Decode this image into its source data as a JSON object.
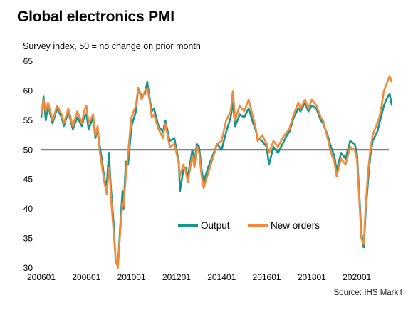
{
  "chart_data": {
    "type": "line",
    "title": "Global electronics PMI",
    "subtitle": "Survey index, 50 = no change on prior month",
    "source": "Source: IHS Markit",
    "ylim": [
      30,
      65
    ],
    "yticks": [
      30,
      35,
      40,
      45,
      50,
      55,
      60,
      65
    ],
    "xticks": [
      "200601",
      "200801",
      "201001",
      "201201",
      "201401",
      "201601",
      "201801",
      "202001"
    ],
    "x_start": "2006-01",
    "x_end": "2021-06",
    "reference_line": 50,
    "legend_position": "center-bottom",
    "series": [
      {
        "name": "Output",
        "color": "#17958a",
        "values": [
          [
            2006.0,
            55.5
          ],
          [
            2006.1,
            59.0
          ],
          [
            2006.2,
            55.0
          ],
          [
            2006.3,
            57.5
          ],
          [
            2006.5,
            54.5
          ],
          [
            2006.7,
            57.0
          ],
          [
            2006.9,
            55.5
          ],
          [
            2007.0,
            54.0
          ],
          [
            2007.2,
            56.5
          ],
          [
            2007.4,
            53.5
          ],
          [
            2007.6,
            55.5
          ],
          [
            2007.8,
            54.0
          ],
          [
            2007.9,
            55.5
          ],
          [
            2008.0,
            56.0
          ],
          [
            2008.1,
            53.5
          ],
          [
            2008.3,
            55.5
          ],
          [
            2008.4,
            52.0
          ],
          [
            2008.5,
            53.5
          ],
          [
            2008.6,
            50.5
          ],
          [
            2008.7,
            48.0
          ],
          [
            2008.8,
            45.0
          ],
          [
            2008.9,
            44.0
          ],
          [
            2009.0,
            49.5
          ],
          [
            2009.05,
            46.0
          ],
          [
            2009.1,
            43.0
          ],
          [
            2009.2,
            38.0
          ],
          [
            2009.3,
            31.0
          ],
          [
            2009.4,
            30.5
          ],
          [
            2009.5,
            37.0
          ],
          [
            2009.6,
            43.0
          ],
          [
            2009.65,
            40.0
          ],
          [
            2009.75,
            48.0
          ],
          [
            2009.85,
            47.5
          ],
          [
            2010.0,
            54.0
          ],
          [
            2010.2,
            56.5
          ],
          [
            2010.3,
            60.5
          ],
          [
            2010.45,
            59.0
          ],
          [
            2010.6,
            59.5
          ],
          [
            2010.7,
            61.5
          ],
          [
            2010.8,
            59.0
          ],
          [
            2010.9,
            56.5
          ],
          [
            2011.0,
            57.0
          ],
          [
            2011.2,
            54.0
          ],
          [
            2011.4,
            53.0
          ],
          [
            2011.5,
            55.0
          ],
          [
            2011.7,
            51.5
          ],
          [
            2011.9,
            52.0
          ],
          [
            2012.0,
            50.0
          ],
          [
            2012.1,
            48.0
          ],
          [
            2012.15,
            43.0
          ],
          [
            2012.3,
            46.5
          ],
          [
            2012.4,
            47.0
          ],
          [
            2012.5,
            45.5
          ],
          [
            2012.7,
            50.0
          ],
          [
            2012.8,
            48.0
          ],
          [
            2012.9,
            51.0
          ],
          [
            2013.0,
            50.5
          ],
          [
            2013.1,
            47.0
          ],
          [
            2013.2,
            44.5
          ],
          [
            2013.4,
            47.0
          ],
          [
            2013.6,
            49.0
          ],
          [
            2013.8,
            51.0
          ],
          [
            2014.0,
            50.0
          ],
          [
            2014.2,
            53.0
          ],
          [
            2014.4,
            55.5
          ],
          [
            2014.5,
            58.0
          ],
          [
            2014.6,
            54.0
          ],
          [
            2014.8,
            56.0
          ],
          [
            2015.0,
            55.5
          ],
          [
            2015.2,
            57.0
          ],
          [
            2015.4,
            54.5
          ],
          [
            2015.5,
            53.5
          ],
          [
            2015.6,
            52.0
          ],
          [
            2015.8,
            51.5
          ],
          [
            2016.0,
            50.5
          ],
          [
            2016.1,
            47.5
          ],
          [
            2016.3,
            50.5
          ],
          [
            2016.5,
            49.5
          ],
          [
            2016.7,
            51.0
          ],
          [
            2016.9,
            52.5
          ],
          [
            2017.0,
            53.0
          ],
          [
            2017.2,
            55.5
          ],
          [
            2017.4,
            57.0
          ],
          [
            2017.5,
            56.5
          ],
          [
            2017.7,
            58.0
          ],
          [
            2017.85,
            56.5
          ],
          [
            2018.0,
            57.5
          ],
          [
            2018.2,
            57.0
          ],
          [
            2018.4,
            55.0
          ],
          [
            2018.5,
            54.5
          ],
          [
            2018.7,
            52.5
          ],
          [
            2018.85,
            50.5
          ],
          [
            2019.0,
            49.0
          ],
          [
            2019.1,
            46.5
          ],
          [
            2019.3,
            49.5
          ],
          [
            2019.5,
            48.5
          ],
          [
            2019.7,
            51.5
          ],
          [
            2019.9,
            51.0
          ],
          [
            2020.0,
            49.5
          ],
          [
            2020.1,
            43.0
          ],
          [
            2020.2,
            36.0
          ],
          [
            2020.3,
            33.5
          ],
          [
            2020.4,
            40.0
          ],
          [
            2020.5,
            45.0
          ],
          [
            2020.6,
            49.0
          ],
          [
            2020.7,
            51.5
          ],
          [
            2020.9,
            53.0
          ],
          [
            2021.0,
            54.5
          ],
          [
            2021.1,
            56.0
          ],
          [
            2021.2,
            57.5
          ],
          [
            2021.3,
            58.5
          ],
          [
            2021.45,
            59.5
          ],
          [
            2021.55,
            57.5
          ]
        ]
      },
      {
        "name": "New orders",
        "color": "#f08a3c",
        "values": [
          [
            2006.0,
            56.0
          ],
          [
            2006.1,
            58.5
          ],
          [
            2006.2,
            56.5
          ],
          [
            2006.3,
            58.0
          ],
          [
            2006.5,
            55.0
          ],
          [
            2006.7,
            57.5
          ],
          [
            2006.9,
            56.0
          ],
          [
            2007.0,
            54.5
          ],
          [
            2007.2,
            57.0
          ],
          [
            2007.4,
            54.0
          ],
          [
            2007.6,
            56.5
          ],
          [
            2007.8,
            54.5
          ],
          [
            2007.9,
            56.5
          ],
          [
            2008.0,
            57.5
          ],
          [
            2008.1,
            54.5
          ],
          [
            2008.3,
            56.0
          ],
          [
            2008.4,
            52.5
          ],
          [
            2008.5,
            54.0
          ],
          [
            2008.6,
            49.5
          ],
          [
            2008.7,
            47.0
          ],
          [
            2008.8,
            44.5
          ],
          [
            2008.9,
            42.5
          ],
          [
            2009.0,
            47.0
          ],
          [
            2009.05,
            45.0
          ],
          [
            2009.1,
            41.5
          ],
          [
            2009.2,
            36.5
          ],
          [
            2009.3,
            31.5
          ],
          [
            2009.4,
            30.0
          ],
          [
            2009.5,
            36.0
          ],
          [
            2009.6,
            41.0
          ],
          [
            2009.65,
            40.5
          ],
          [
            2009.75,
            45.5
          ],
          [
            2009.85,
            49.5
          ],
          [
            2010.0,
            55.5
          ],
          [
            2010.2,
            57.5
          ],
          [
            2010.3,
            60.5
          ],
          [
            2010.45,
            58.5
          ],
          [
            2010.6,
            60.0
          ],
          [
            2010.7,
            60.5
          ],
          [
            2010.8,
            58.5
          ],
          [
            2010.9,
            55.5
          ],
          [
            2011.0,
            56.0
          ],
          [
            2011.2,
            53.5
          ],
          [
            2011.4,
            52.0
          ],
          [
            2011.5,
            54.5
          ],
          [
            2011.7,
            50.5
          ],
          [
            2011.9,
            51.0
          ],
          [
            2012.0,
            49.5
          ],
          [
            2012.1,
            47.5
          ],
          [
            2012.15,
            45.5
          ],
          [
            2012.3,
            47.5
          ],
          [
            2012.4,
            46.5
          ],
          [
            2012.5,
            44.5
          ],
          [
            2012.7,
            49.0
          ],
          [
            2012.8,
            47.0
          ],
          [
            2012.9,
            50.5
          ],
          [
            2013.0,
            49.5
          ],
          [
            2013.1,
            46.0
          ],
          [
            2013.2,
            43.5
          ],
          [
            2013.4,
            46.0
          ],
          [
            2013.6,
            48.5
          ],
          [
            2013.8,
            51.0
          ],
          [
            2014.0,
            51.5
          ],
          [
            2014.2,
            55.0
          ],
          [
            2014.4,
            56.5
          ],
          [
            2014.5,
            60.0
          ],
          [
            2014.6,
            55.0
          ],
          [
            2014.8,
            57.5
          ],
          [
            2015.0,
            56.5
          ],
          [
            2015.2,
            58.5
          ],
          [
            2015.4,
            55.5
          ],
          [
            2015.5,
            54.0
          ],
          [
            2015.6,
            51.5
          ],
          [
            2015.8,
            52.5
          ],
          [
            2016.0,
            51.0
          ],
          [
            2016.1,
            49.5
          ],
          [
            2016.3,
            51.5
          ],
          [
            2016.5,
            50.5
          ],
          [
            2016.7,
            52.0
          ],
          [
            2016.9,
            53.0
          ],
          [
            2017.0,
            53.5
          ],
          [
            2017.2,
            56.0
          ],
          [
            2017.4,
            58.0
          ],
          [
            2017.5,
            57.0
          ],
          [
            2017.7,
            58.5
          ],
          [
            2017.85,
            57.0
          ],
          [
            2018.0,
            58.5
          ],
          [
            2018.2,
            57.5
          ],
          [
            2018.4,
            55.5
          ],
          [
            2018.5,
            55.0
          ],
          [
            2018.7,
            52.0
          ],
          [
            2018.85,
            49.5
          ],
          [
            2019.0,
            48.0
          ],
          [
            2019.1,
            45.5
          ],
          [
            2019.3,
            48.5
          ],
          [
            2019.5,
            47.5
          ],
          [
            2019.7,
            50.5
          ],
          [
            2019.9,
            50.0
          ],
          [
            2020.0,
            48.5
          ],
          [
            2020.1,
            42.0
          ],
          [
            2020.2,
            35.0
          ],
          [
            2020.3,
            34.0
          ],
          [
            2020.4,
            41.0
          ],
          [
            2020.5,
            46.5
          ],
          [
            2020.6,
            50.0
          ],
          [
            2020.7,
            52.5
          ],
          [
            2020.9,
            54.5
          ],
          [
            2021.0,
            55.5
          ],
          [
            2021.1,
            57.5
          ],
          [
            2021.2,
            60.0
          ],
          [
            2021.3,
            61.0
          ],
          [
            2021.45,
            62.5
          ],
          [
            2021.55,
            61.5
          ]
        ]
      }
    ]
  }
}
